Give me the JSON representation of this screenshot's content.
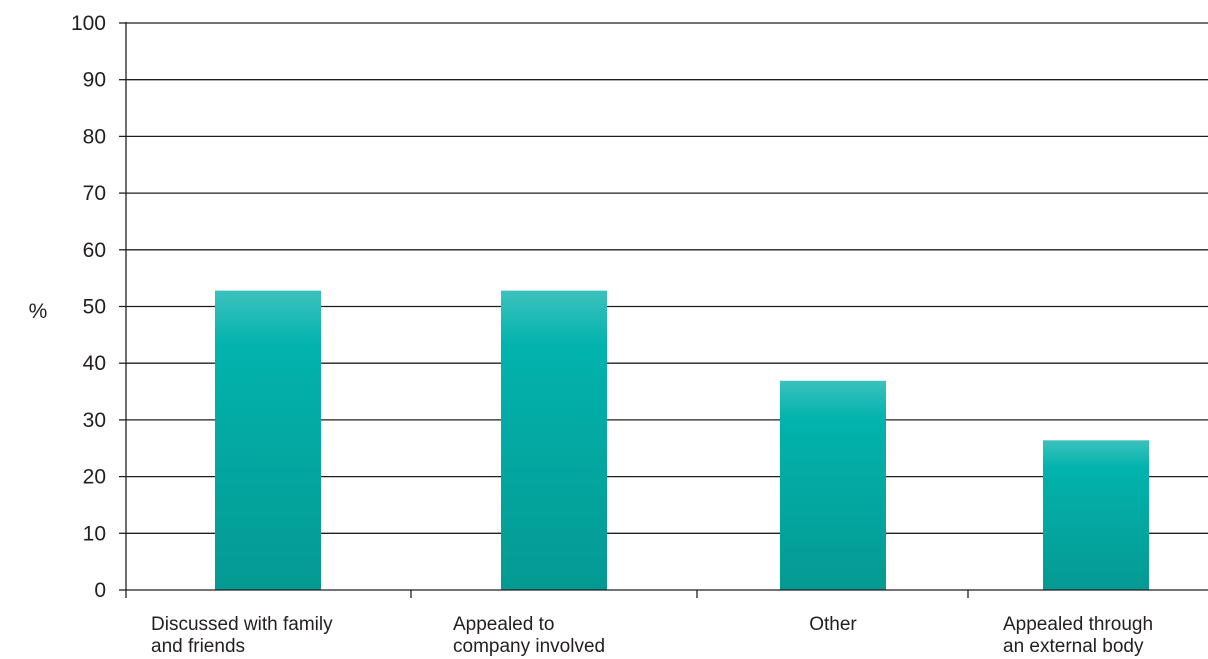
{
  "chart_data": {
    "type": "bar",
    "ylabel": "%",
    "xlabel": "",
    "ylim": [
      0,
      100
    ],
    "yticks": [
      0,
      10,
      20,
      30,
      40,
      50,
      60,
      70,
      80,
      90,
      100
    ],
    "grid": true,
    "categories": [
      [
        "Discussed with family",
        "and friends"
      ],
      [
        "Appealed to",
        "company involved"
      ],
      [
        "Other"
      ],
      [
        "Appealed through",
        "an external body"
      ]
    ],
    "values": [
      52.8,
      52.8,
      36.9,
      26.4
    ],
    "bar_color": "#02ada5",
    "axis_color": "#231f20"
  }
}
